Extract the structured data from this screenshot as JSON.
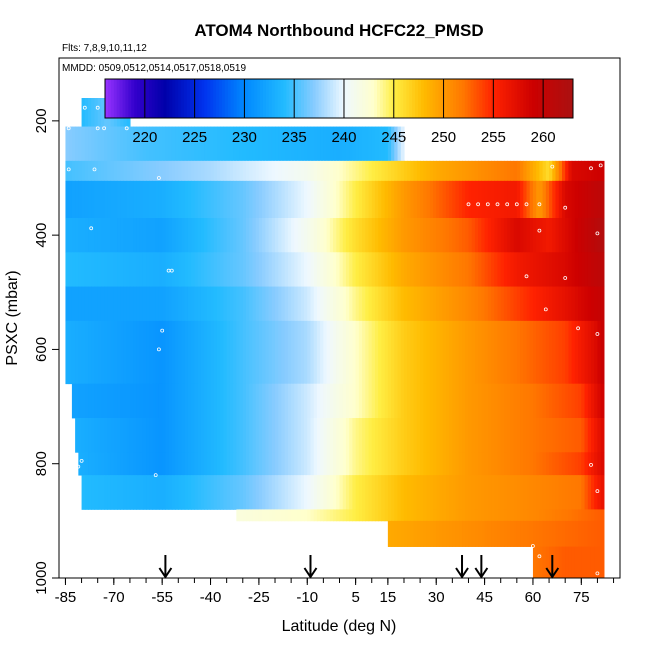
{
  "chart_data": {
    "type": "heatmap",
    "title": "ATOM4 Northbound HCFC22_PMSD",
    "flights_label": "Flts: 7,8,9,10,11,12",
    "dates_label": "MMDD: 0509,0512,0514,0517,0518,0519",
    "xlabel": "Latitude (deg N)",
    "ylabel": "PSXC (mbar)",
    "xlim": [
      -87,
      87
    ],
    "ylim": [
      1000,
      90
    ],
    "y_reversed": true,
    "x_ticks": [
      "-85",
      "-70",
      "-55",
      "-40",
      "-25",
      "-10",
      "5",
      "15",
      "30",
      "45",
      "60",
      "75"
    ],
    "x_tick_values": [
      -85,
      -70,
      -55,
      -40,
      -25,
      -10,
      5,
      15,
      30,
      45,
      60,
      75
    ],
    "y_ticks": [
      "200",
      "400",
      "600",
      "800",
      "1000"
    ],
    "y_tick_values": [
      200,
      400,
      600,
      800,
      1000
    ],
    "colorbar": {
      "min": 216,
      "max": 263,
      "ticks": [
        "220",
        "225",
        "230",
        "235",
        "240",
        "245",
        "250",
        "255",
        "260"
      ],
      "tick_values": [
        220,
        225,
        230,
        235,
        240,
        245,
        250,
        255,
        260
      ]
    },
    "arrows_at_latitude": [
      -54,
      -9,
      38,
      44,
      66
    ],
    "rows": [
      {
        "p_top": 160,
        "p_bot": 210,
        "lat_start": -80,
        "lat_end": -65,
        "values": [
          [
            -80,
            234
          ],
          [
            -72,
            236
          ],
          [
            -65,
            234
          ]
        ]
      },
      {
        "p_top": 210,
        "p_bot": 270,
        "lat_start": -85,
        "lat_end": 20,
        "values": [
          [
            -85,
            237
          ],
          [
            -60,
            235
          ],
          [
            -30,
            234
          ],
          [
            0,
            233
          ],
          [
            15,
            234
          ],
          [
            20,
            240
          ]
        ]
      },
      {
        "p_top": 270,
        "p_bot": 305,
        "lat_start": -85,
        "lat_end": 82,
        "values": [
          [
            -85,
            235
          ],
          [
            -40,
            238
          ],
          [
            -10,
            241
          ],
          [
            10,
            245
          ],
          [
            30,
            249
          ],
          [
            55,
            252
          ],
          [
            65,
            246
          ],
          [
            72,
            258
          ],
          [
            82,
            259
          ]
        ]
      },
      {
        "p_top": 305,
        "p_bot": 370,
        "lat_start": -85,
        "lat_end": 82,
        "values": [
          [
            -85,
            232
          ],
          [
            -55,
            233
          ],
          [
            -30,
            236
          ],
          [
            -10,
            240
          ],
          [
            5,
            245
          ],
          [
            20,
            250
          ],
          [
            40,
            255
          ],
          [
            55,
            256
          ],
          [
            62,
            250
          ],
          [
            70,
            258
          ],
          [
            82,
            261
          ]
        ]
      },
      {
        "p_top": 370,
        "p_bot": 430,
        "lat_start": -85,
        "lat_end": 82,
        "values": [
          [
            -85,
            233
          ],
          [
            -55,
            232
          ],
          [
            -30,
            236
          ],
          [
            -10,
            241
          ],
          [
            5,
            246
          ],
          [
            20,
            250
          ],
          [
            40,
            253
          ],
          [
            55,
            258
          ],
          [
            65,
            256
          ],
          [
            82,
            262
          ]
        ]
      },
      {
        "p_top": 430,
        "p_bot": 490,
        "lat_start": -85,
        "lat_end": 82,
        "values": [
          [
            -85,
            234
          ],
          [
            -55,
            233
          ],
          [
            -30,
            236
          ],
          [
            -10,
            240
          ],
          [
            5,
            245
          ],
          [
            20,
            249
          ],
          [
            40,
            252
          ],
          [
            55,
            256
          ],
          [
            70,
            258
          ],
          [
            82,
            261
          ]
        ]
      },
      {
        "p_top": 490,
        "p_bot": 550,
        "lat_start": -85,
        "lat_end": 82,
        "values": [
          [
            -85,
            232
          ],
          [
            -55,
            232
          ],
          [
            -30,
            235
          ],
          [
            -10,
            239
          ],
          [
            5,
            244
          ],
          [
            20,
            248
          ],
          [
            40,
            251
          ],
          [
            55,
            254
          ],
          [
            70,
            257
          ],
          [
            82,
            260
          ]
        ]
      },
      {
        "p_top": 550,
        "p_bot": 660,
        "lat_start": -85,
        "lat_end": 82,
        "values": [
          [
            -85,
            233
          ],
          [
            -55,
            231
          ],
          [
            -30,
            235
          ],
          [
            -10,
            238
          ],
          [
            5,
            243
          ],
          [
            20,
            247
          ],
          [
            40,
            250
          ],
          [
            55,
            252
          ],
          [
            70,
            254
          ],
          [
            80,
            258
          ],
          [
            82,
            260
          ]
        ]
      },
      {
        "p_top": 660,
        "p_bot": 720,
        "lat_start": -83,
        "lat_end": 82,
        "values": [
          [
            -83,
            232
          ],
          [
            -55,
            231
          ],
          [
            -30,
            235
          ],
          [
            -10,
            239
          ],
          [
            5,
            243
          ],
          [
            20,
            247
          ],
          [
            40,
            250
          ],
          [
            60,
            252
          ],
          [
            75,
            254
          ],
          [
            82,
            259
          ]
        ]
      },
      {
        "p_top": 720,
        "p_bot": 780,
        "lat_start": -82,
        "lat_end": 82,
        "values": [
          [
            -82,
            233
          ],
          [
            -55,
            231
          ],
          [
            -30,
            235
          ],
          [
            -10,
            239
          ],
          [
            5,
            244
          ],
          [
            20,
            247
          ],
          [
            40,
            250
          ],
          [
            60,
            252
          ],
          [
            75,
            253
          ],
          [
            82,
            258
          ]
        ]
      },
      {
        "p_top": 780,
        "p_bot": 820,
        "lat_start": -81,
        "lat_end": 82,
        "values": [
          [
            -81,
            233
          ],
          [
            -55,
            231
          ],
          [
            -30,
            235
          ],
          [
            -10,
            239
          ],
          [
            5,
            244
          ],
          [
            20,
            247
          ],
          [
            40,
            250
          ],
          [
            60,
            252
          ],
          [
            75,
            254
          ],
          [
            82,
            258
          ]
        ]
      },
      {
        "p_top": 820,
        "p_bot": 880,
        "lat_start": -80,
        "lat_end": 82,
        "values": [
          [
            -80,
            234
          ],
          [
            -55,
            233
          ],
          [
            -30,
            236
          ],
          [
            -10,
            240
          ],
          [
            5,
            245
          ],
          [
            20,
            248
          ],
          [
            40,
            250
          ],
          [
            60,
            251
          ],
          [
            75,
            252
          ],
          [
            82,
            257
          ]
        ]
      },
      {
        "p_top": 880,
        "p_bot": 900,
        "lat_start": -32,
        "lat_end": 82,
        "values": [
          [
            -32,
            242
          ],
          [
            -10,
            243
          ],
          [
            5,
            245
          ],
          [
            20,
            248
          ],
          [
            40,
            250
          ],
          [
            60,
            251
          ],
          [
            82,
            253
          ]
        ]
      },
      {
        "p_top": 900,
        "p_bot": 945,
        "lat_start": 15,
        "lat_end": 82,
        "values": [
          [
            15,
            249
          ],
          [
            30,
            250
          ],
          [
            45,
            251
          ],
          [
            60,
            252
          ],
          [
            82,
            253
          ]
        ]
      },
      {
        "p_top": 945,
        "p_bot": 1000,
        "lat_start": 60,
        "lat_end": 82,
        "values": [
          [
            60,
            252
          ],
          [
            70,
            253
          ],
          [
            82,
            253
          ]
        ]
      }
    ],
    "markers": [
      [
        -79,
        177
      ],
      [
        -75,
        177
      ],
      [
        -71,
        177
      ],
      [
        -68,
        177
      ],
      [
        -86,
        213
      ],
      [
        -84,
        213
      ],
      [
        -75,
        213
      ],
      [
        -73,
        213
      ],
      [
        -66,
        213
      ],
      [
        -84,
        285
      ],
      [
        -76,
        285
      ],
      [
        -56,
        300
      ],
      [
        66,
        280
      ],
      [
        78,
        283
      ],
      [
        81,
        278
      ],
      [
        40,
        346
      ],
      [
        43,
        346
      ],
      [
        46,
        346
      ],
      [
        49,
        346
      ],
      [
        52,
        346
      ],
      [
        55,
        346
      ],
      [
        58,
        346
      ],
      [
        62,
        346
      ],
      [
        70,
        352
      ],
      [
        -77,
        388
      ],
      [
        62,
        392
      ],
      [
        80,
        397
      ],
      [
        -53,
        462
      ],
      [
        -52,
        462
      ],
      [
        58,
        472
      ],
      [
        70,
        475
      ],
      [
        64,
        530
      ],
      [
        -55,
        567
      ],
      [
        74,
        563
      ],
      [
        80,
        573
      ],
      [
        -56,
        600
      ],
      [
        -86,
        608
      ],
      [
        -80,
        795
      ],
      [
        -81,
        805
      ],
      [
        -57,
        820
      ],
      [
        78,
        802
      ],
      [
        80,
        848
      ],
      [
        60,
        944
      ],
      [
        62,
        962
      ],
      [
        80,
        992
      ]
    ]
  }
}
